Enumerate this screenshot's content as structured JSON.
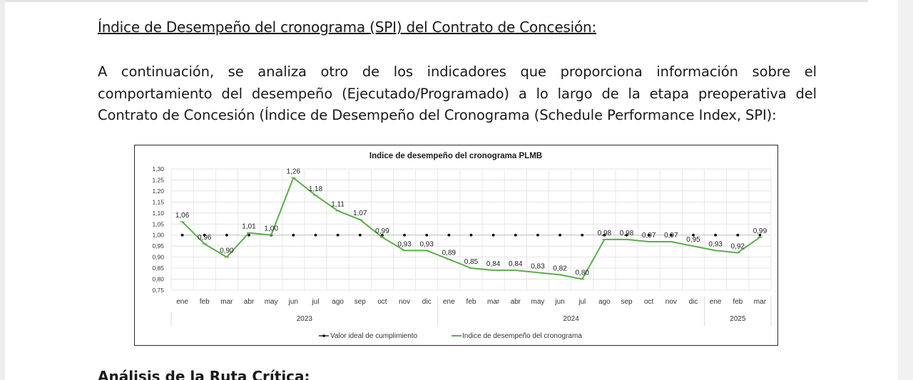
{
  "document": {
    "heading": "Índice de Desempeño del cronograma (SPI) del Contrato de Concesión:",
    "paragraph": "A continuación, se analiza otro de los indicadores que proporciona información sobre el comportamiento del desempeño (Ejecutado/Programado) a lo largo de la etapa preoperativa del Contrato de Concesión (Índice de Desempeño del Cronograma (Schedule Performance Index, SPI):",
    "next_heading": "Análisis de la Ruta Crítica:"
  },
  "chart_data": {
    "type": "line",
    "title": "Indice de desempeño del cronograma PLMB",
    "categories": [
      "ene",
      "feb",
      "mar",
      "abr",
      "may",
      "jun",
      "jul",
      "ago",
      "sep",
      "oct",
      "nov",
      "dic",
      "ene",
      "feb",
      "mar",
      "abr",
      "may",
      "jun",
      "jul",
      "ago",
      "sep",
      "oct",
      "nov",
      "dic",
      "ene",
      "feb",
      "mar"
    ],
    "year_groups": [
      {
        "label": "2023",
        "start": 0,
        "end": 11
      },
      {
        "label": "2024",
        "start": 12,
        "end": 23
      },
      {
        "label": "2025",
        "start": 24,
        "end": 26
      }
    ],
    "series": [
      {
        "name": "Valor ideal de cumplimiento",
        "color": "#000000",
        "values": [
          1,
          1,
          1,
          1,
          1,
          1,
          1,
          1,
          1,
          1,
          1,
          1,
          1,
          1,
          1,
          1,
          1,
          1,
          1,
          1,
          1,
          1,
          1,
          1,
          1,
          1,
          1
        ]
      },
      {
        "name": "Indice de desempeño del cronograma",
        "color": "#5aae4a",
        "values": [
          1.06,
          0.96,
          0.9,
          1.01,
          1.0,
          1.26,
          1.18,
          1.11,
          1.07,
          0.99,
          0.93,
          0.93,
          0.89,
          0.85,
          0.84,
          0.84,
          0.83,
          0.82,
          0.8,
          0.98,
          0.98,
          0.97,
          0.97,
          0.95,
          0.93,
          0.92,
          0.99
        ],
        "labels": [
          "1,06",
          "0,96",
          "0,90",
          "1,01",
          "1,00",
          "1,26",
          "1,18",
          "1,11",
          "1,07",
          "0,99",
          "0,93",
          "0,93",
          "0,89",
          "0,85",
          "0,84",
          "0,84",
          "0,83",
          "0,82",
          "0,80",
          "0,98",
          "0,98",
          "0,97",
          "0,97",
          "0,95",
          "0,93",
          "0,92",
          "0,99"
        ]
      }
    ],
    "yticks": [
      "0,75",
      "0,80",
      "0,85",
      "0,90",
      "0,95",
      "1,00",
      "1,05",
      "1,10",
      "1,15",
      "1,20",
      "1,25",
      "1,30"
    ],
    "ylim": [
      0.75,
      1.3
    ],
    "grid": true,
    "legend": "bottom"
  }
}
